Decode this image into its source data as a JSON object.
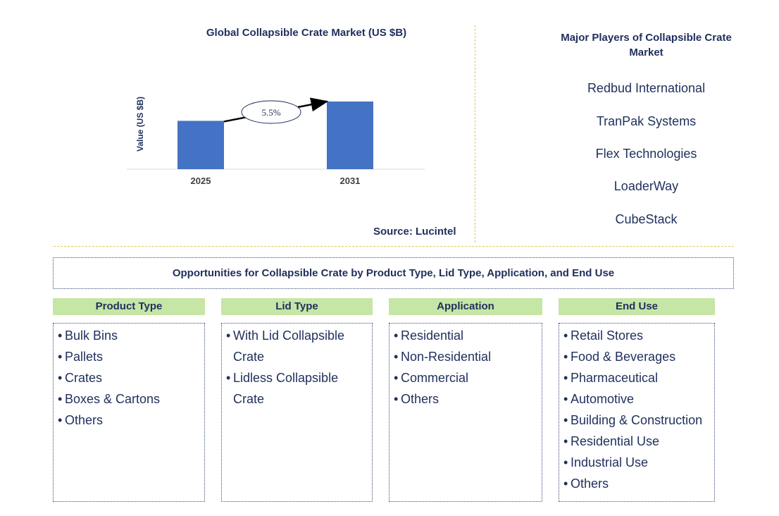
{
  "chart_data": {
    "type": "bar",
    "title": "Global Collapsible Crate Market (US $B)",
    "ylabel": "Value (US $B)",
    "categories": [
      "2025",
      "2031"
    ],
    "values": [
      1.0,
      1.4
    ],
    "cagr_label": "5.5%",
    "colors": {
      "bar": "#4472c4",
      "axis": "#d9d9d9",
      "text": "#1f2f5c"
    }
  },
  "source": "Source: Lucintel",
  "players": {
    "title": "Major Players of Collapsible Crate Market",
    "items": [
      "Redbud International",
      "TranPak Systems",
      "Flex Technologies",
      "LoaderWay",
      "CubeStack"
    ]
  },
  "opportunities_title": "Opportunities for Collapsible Crate by Product Type, Lid Type, Application, and End Use",
  "segments": [
    {
      "header": "Product Type",
      "items": [
        "Bulk Bins",
        "Pallets",
        "Crates",
        "Boxes & Cartons",
        "Others"
      ]
    },
    {
      "header": "Lid Type",
      "items": [
        "With Lid Collapsible Crate",
        "Lidless Collapsible Crate"
      ]
    },
    {
      "header": "Application",
      "items": [
        "Residential",
        "Non-Residential",
        "Commercial",
        "Others"
      ]
    },
    {
      "header": "End Use",
      "items": [
        "Retail Stores",
        "Food & Beverages",
        "Pharmaceutical",
        "Automotive",
        "Building & Construction",
        "Residential Use",
        "Industrial Use",
        "Others"
      ]
    }
  ],
  "accent_colors": {
    "segment_header": "#c6e6a6",
    "divider": "#e8c25a",
    "text": "#1f2f5c"
  }
}
